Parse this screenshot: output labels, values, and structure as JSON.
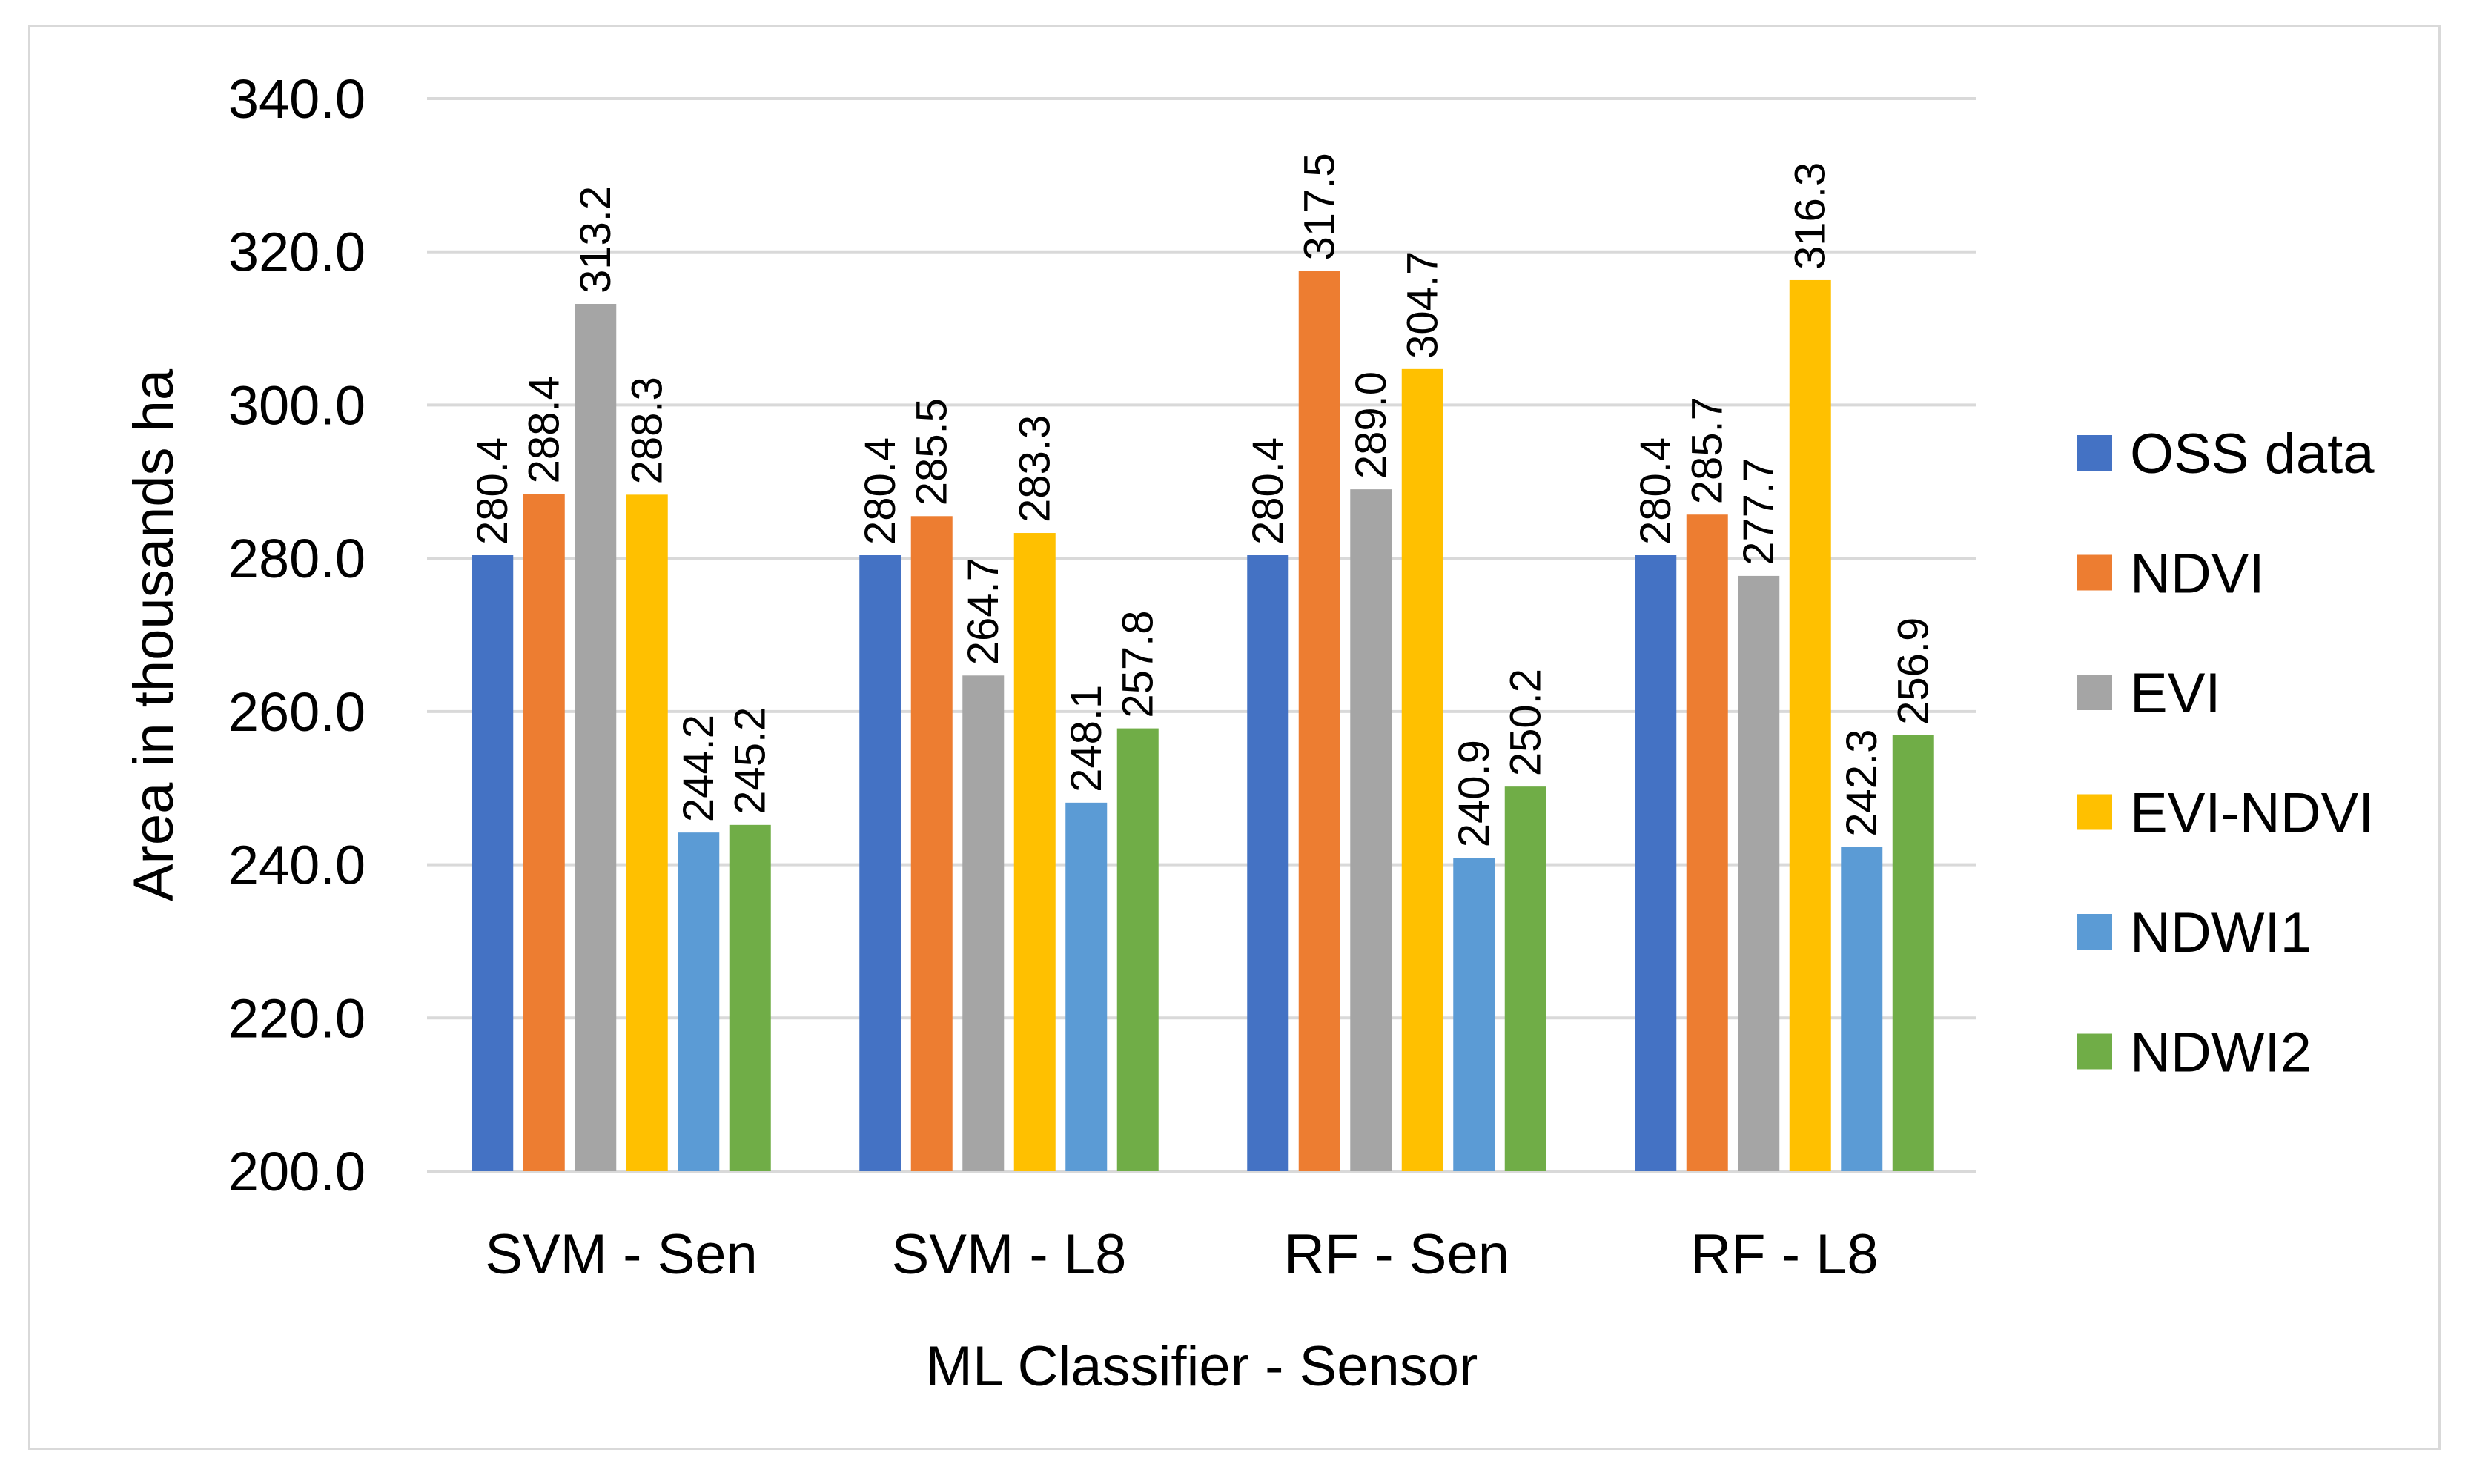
{
  "chart_data": {
    "type": "bar",
    "title": "",
    "xlabel": "ML Classifier - Sensor",
    "ylabel": "Area in thousands ha",
    "ylim": [
      200,
      340
    ],
    "yticks": [
      "200.0",
      "220.0",
      "240.0",
      "260.0",
      "280.0",
      "300.0",
      "320.0",
      "340.0"
    ],
    "categories": [
      "SVM - Sen",
      "SVM - L8",
      "RF - Sen",
      "RF - L8"
    ],
    "grid": true,
    "legend_position": "right",
    "series": [
      {
        "name": "OSS data",
        "color": "#4472C4",
        "values": [
          280.4,
          280.4,
          280.4,
          280.4
        ],
        "labels": [
          "280.4",
          "280.4",
          "280.4",
          "280.4"
        ]
      },
      {
        "name": "NDVI",
        "color": "#ED7D31",
        "values": [
          288.4,
          285.5,
          317.5,
          285.7
        ],
        "labels": [
          "288.4",
          "285.5",
          "317.5",
          "285.7"
        ]
      },
      {
        "name": "EVI",
        "color": "#A5A5A5",
        "values": [
          313.2,
          264.7,
          289.0,
          277.7
        ],
        "labels": [
          "313.2",
          "264.7",
          "289.0",
          "277.7"
        ]
      },
      {
        "name": "EVI-NDVI",
        "color": "#FFC000",
        "values": [
          288.3,
          283.3,
          304.7,
          316.3
        ],
        "labels": [
          "288.3",
          "283.3",
          "304.7",
          "316.3"
        ]
      },
      {
        "name": "NDWI1",
        "color": "#5B9BD5",
        "values": [
          244.2,
          248.1,
          240.9,
          242.3
        ],
        "labels": [
          "244.2",
          "248.1",
          "240.9",
          "242.3"
        ]
      },
      {
        "name": "NDWI2",
        "color": "#70AD47",
        "values": [
          245.2,
          257.8,
          250.2,
          256.9
        ],
        "labels": [
          "245.2",
          "257.8",
          "250.2",
          "256.9"
        ]
      }
    ]
  }
}
